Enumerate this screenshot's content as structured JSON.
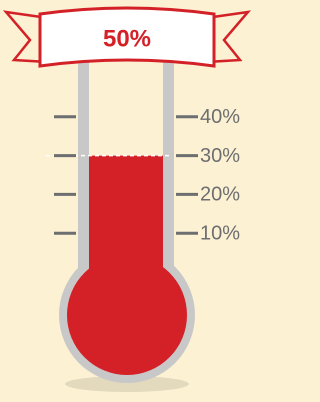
{
  "chart_data": {
    "type": "thermometer",
    "title": "50%",
    "value": 30,
    "color": "#d42027",
    "ylim": [
      0,
      50
    ],
    "yticks": [
      {
        "value": 10,
        "label": "10%"
      },
      {
        "value": 20,
        "label": "20%"
      },
      {
        "value": 30,
        "label": "30%"
      },
      {
        "value": 40,
        "label": "40%"
      }
    ]
  }
}
